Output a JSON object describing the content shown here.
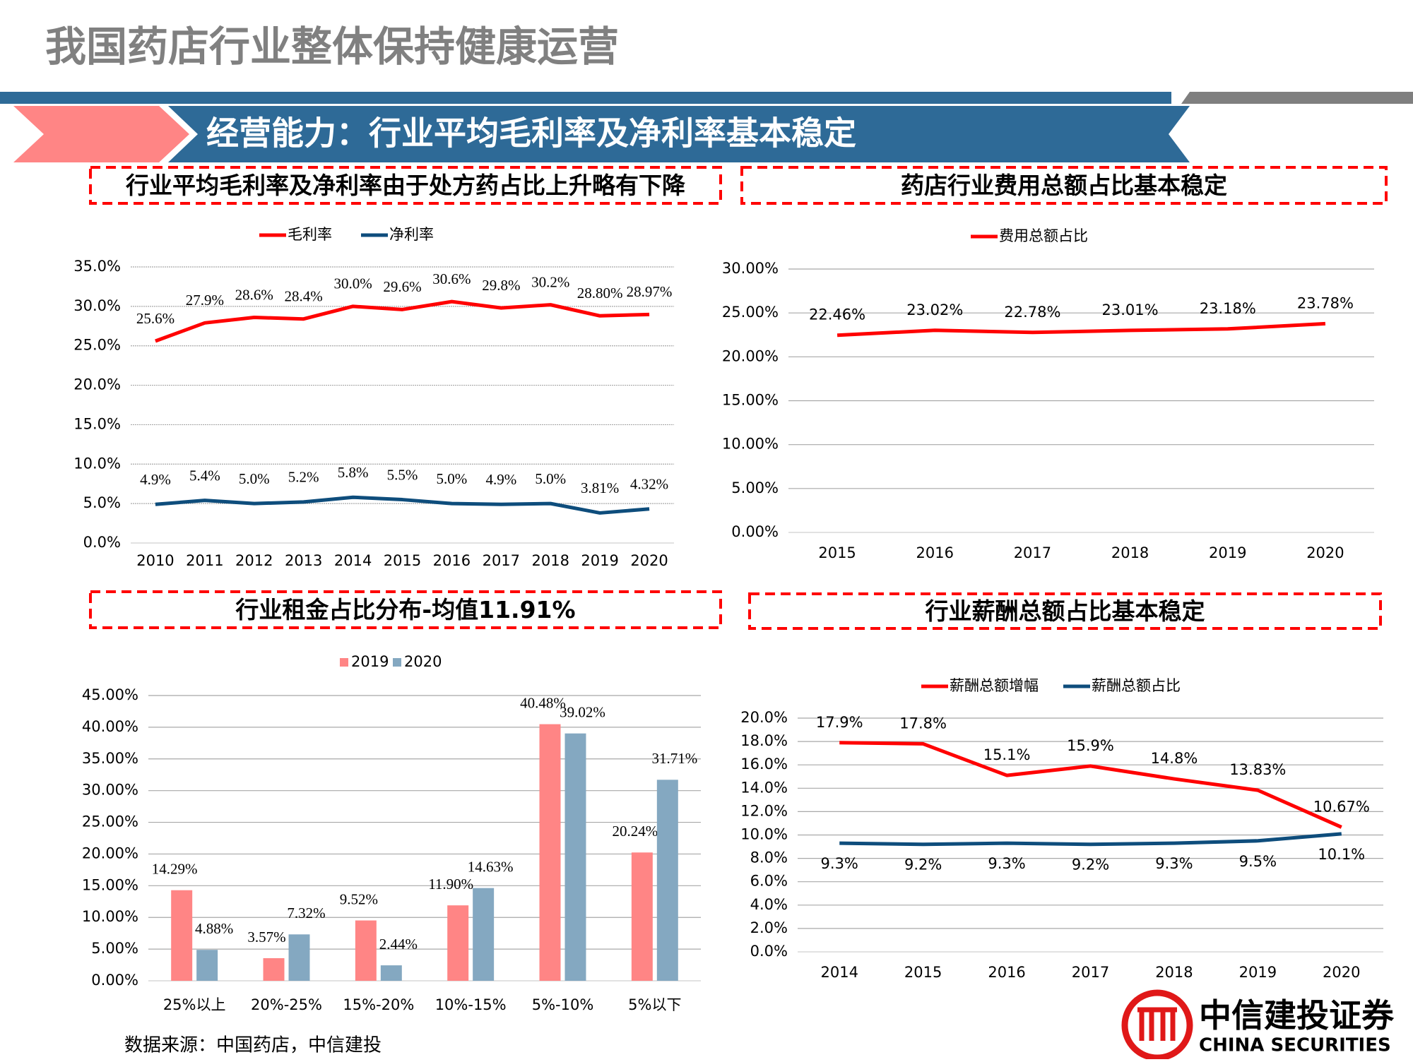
{
  "header": {
    "title": "我国药店行业整体保持健康运营",
    "subtitle": "经营能力：行业平均毛利率及净利率基本稳定"
  },
  "chart_data": [
    {
      "type": "line",
      "title": "行业平均毛利率及净利率由于处方药占比上升略有下降",
      "categories": [
        "2010",
        "2011",
        "2012",
        "2013",
        "2014",
        "2015",
        "2016",
        "2017",
        "2018",
        "2019",
        "2020"
      ],
      "series": [
        {
          "name": "毛利率",
          "color": "#ff0000",
          "values": [
            25.6,
            27.9,
            28.6,
            28.4,
            30.0,
            29.6,
            30.6,
            29.8,
            30.2,
            28.8,
            28.97
          ],
          "value_labels": [
            "25.6%",
            "27.9%",
            "28.6%",
            "28.4%",
            "30.0%",
            "29.6%",
            "30.6%",
            "29.8%",
            "30.2%",
            "28.80%",
            "28.97%"
          ]
        },
        {
          "name": "净利率",
          "color": "#0e4d7c",
          "values": [
            4.9,
            5.4,
            5.0,
            5.2,
            5.8,
            5.5,
            5.0,
            4.9,
            5.0,
            3.81,
            4.32
          ],
          "value_labels": [
            "4.9%",
            "5.4%",
            "5.0%",
            "5.2%",
            "5.8%",
            "5.5%",
            "5.0%",
            "4.9%",
            "5.0%",
            "3.81%",
            "4.32%"
          ]
        }
      ],
      "ylim": [
        0,
        35
      ],
      "yticks": [
        {
          "value": 0,
          "label": "0.0%"
        },
        {
          "value": 5,
          "label": "5.0%"
        },
        {
          "value": 10,
          "label": "10.0%"
        },
        {
          "value": 15,
          "label": "15.0%"
        },
        {
          "value": 20,
          "label": "20.0%"
        },
        {
          "value": 25,
          "label": "25.0%"
        },
        {
          "value": 30,
          "label": "30.0%"
        },
        {
          "value": 35,
          "label": "35.0%"
        }
      ],
      "grid": true
    },
    {
      "type": "line",
      "title": "药店行业费用总额占比基本稳定",
      "categories": [
        "2015",
        "2016",
        "2017",
        "2018",
        "2019",
        "2020"
      ],
      "series": [
        {
          "name": "费用总额占比",
          "color": "#ff0000",
          "values": [
            22.46,
            23.02,
            22.78,
            23.01,
            23.18,
            23.78
          ],
          "value_labels": [
            "22.46%",
            "23.02%",
            "22.78%",
            "23.01%",
            "23.18%",
            "23.78%"
          ]
        }
      ],
      "ylim": [
        0,
        30
      ],
      "yticks": [
        {
          "value": 0,
          "label": "0.00%"
        },
        {
          "value": 5,
          "label": "5.00%"
        },
        {
          "value": 10,
          "label": "10.00%"
        },
        {
          "value": 15,
          "label": "15.00%"
        },
        {
          "value": 20,
          "label": "20.00%"
        },
        {
          "value": 25,
          "label": "25.00%"
        },
        {
          "value": 30,
          "label": "30.00%"
        }
      ],
      "grid": true
    },
    {
      "type": "bar",
      "title": "行业租金占比分布-均值11.91%",
      "categories": [
        "25%以上",
        "20%-25%",
        "15%-20%",
        "10%-15%",
        "5%-10%",
        "5%以下"
      ],
      "series": [
        {
          "name": "2019",
          "color": "#ff8585",
          "values": [
            14.29,
            3.57,
            9.52,
            11.9,
            40.48,
            20.24
          ],
          "value_labels": [
            "14.29%",
            "3.57%",
            "9.52%",
            "11.90%",
            "40.48%",
            "20.24%"
          ]
        },
        {
          "name": "2020",
          "color": "#84a8c1",
          "values": [
            4.88,
            7.32,
            2.44,
            14.63,
            39.02,
            31.71
          ],
          "value_labels": [
            "4.88%",
            "7.32%",
            "2.44%",
            "14.63%",
            "39.02%",
            "31.71%"
          ]
        }
      ],
      "ylim": [
        0,
        45
      ],
      "yticks": [
        {
          "value": 0,
          "label": "0.00%"
        },
        {
          "value": 5,
          "label": "5.00%"
        },
        {
          "value": 10,
          "label": "10.00%"
        },
        {
          "value": 15,
          "label": "15.00%"
        },
        {
          "value": 20,
          "label": "20.00%"
        },
        {
          "value": 25,
          "label": "25.00%"
        },
        {
          "value": 30,
          "label": "30.00%"
        },
        {
          "value": 35,
          "label": "35.00%"
        },
        {
          "value": 40,
          "label": "40.00%"
        },
        {
          "value": 45,
          "label": "45.00%"
        }
      ],
      "grid": true
    },
    {
      "type": "line",
      "title": "行业薪酬总额占比基本稳定",
      "categories": [
        "2014",
        "2015",
        "2016",
        "2017",
        "2018",
        "2019",
        "2020"
      ],
      "series": [
        {
          "name": "薪酬总额增幅",
          "color": "#ff0000",
          "values": [
            17.9,
            17.8,
            15.1,
            15.9,
            14.8,
            13.83,
            10.67
          ],
          "value_labels": [
            "17.9%",
            "17.8%",
            "15.1%",
            "15.9%",
            "14.8%",
            "13.83%",
            "10.67%"
          ]
        },
        {
          "name": "薪酬总额占比",
          "color": "#0e4d7c",
          "values": [
            9.3,
            9.2,
            9.3,
            9.2,
            9.3,
            9.5,
            10.1
          ],
          "value_labels": [
            "9.3%",
            "9.2%",
            "9.3%",
            "9.2%",
            "9.3%",
            "9.5%",
            "10.1%"
          ]
        }
      ],
      "ylim": [
        0,
        20
      ],
      "yticks": [
        {
          "value": 0,
          "label": "0.0%"
        },
        {
          "value": 2,
          "label": "2.0%"
        },
        {
          "value": 4,
          "label": "4.0%"
        },
        {
          "value": 6,
          "label": "6.0%"
        },
        {
          "value": 8,
          "label": "8.0%"
        },
        {
          "value": 10,
          "label": "10.0%"
        },
        {
          "value": 12,
          "label": "12.0%"
        },
        {
          "value": 14,
          "label": "14.0%"
        },
        {
          "value": 16,
          "label": "16.0%"
        },
        {
          "value": 18,
          "label": "18.0%"
        },
        {
          "value": 20,
          "label": "20.0%"
        }
      ],
      "grid": true
    }
  ],
  "footer": {
    "source": "数据来源：中国药店，中信建投",
    "logo_cn": "中信建投证券",
    "logo_en": "CHINA SECURITIES"
  }
}
